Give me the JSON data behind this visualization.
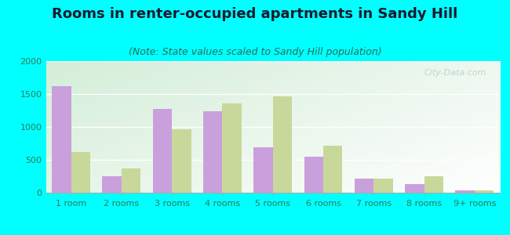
{
  "title": "Rooms in renter-occupied apartments in Sandy Hill",
  "subtitle": "(Note: State values scaled to Sandy Hill population)",
  "categories": [
    "1 room",
    "2 rooms",
    "3 rooms",
    "4 rooms",
    "5 rooms",
    "6 rooms",
    "7 rooms",
    "8 rooms",
    "9+ rooms"
  ],
  "sandy_hill": [
    1625,
    245,
    1270,
    1240,
    690,
    545,
    220,
    130,
    40
  ],
  "paterson": [
    620,
    375,
    960,
    1360,
    1460,
    710,
    210,
    250,
    30
  ],
  "sandy_hill_color": "#c9a0dc",
  "paterson_color": "#c8d89a",
  "background_outer": "#00ffff",
  "ylim": [
    0,
    2000
  ],
  "yticks": [
    0,
    500,
    1000,
    1500,
    2000
  ],
  "bar_width": 0.38,
  "title_fontsize": 13,
  "subtitle_fontsize": 9,
  "tick_fontsize": 8,
  "legend_fontsize": 9,
  "title_color": "#1a1a2e",
  "subtitle_color": "#2d6a5a",
  "tick_color": "#2d7a5a",
  "watermark": "City-Data.com"
}
